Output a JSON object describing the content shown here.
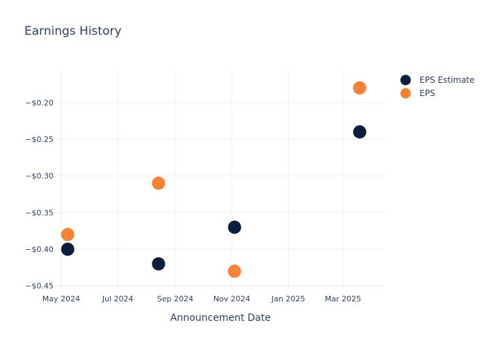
{
  "chart_data": {
    "type": "scatter",
    "title": "Earnings History",
    "xlabel": "Announcement Date",
    "ylabel": "",
    "x_ticks": [
      {
        "date": "2024-05-01",
        "label": "May 2024"
      },
      {
        "date": "2024-07-01",
        "label": "Jul 2024"
      },
      {
        "date": "2024-09-01",
        "label": "Sep 2024"
      },
      {
        "date": "2024-11-01",
        "label": "Nov 2024"
      },
      {
        "date": "2025-01-01",
        "label": "Jan 2025"
      },
      {
        "date": "2025-03-01",
        "label": "Mar 2025"
      }
    ],
    "y_ticks": [
      {
        "value": -0.45,
        "label": "−$0.45"
      },
      {
        "value": -0.4,
        "label": "−$0.40"
      },
      {
        "value": -0.35,
        "label": "−$0.35"
      },
      {
        "value": -0.3,
        "label": "−$0.30"
      },
      {
        "value": -0.25,
        "label": "−$0.25"
      },
      {
        "value": -0.2,
        "label": "−$0.20"
      }
    ],
    "xlim": [
      "2024-04-25",
      "2025-04-15"
    ],
    "ylim": [
      -0.455,
      -0.155
    ],
    "grid": true,
    "legend_position": "top-right",
    "series": [
      {
        "name": "EPS Estimate",
        "color": "#0b1e3e",
        "points": [
          {
            "x": "2024-05-08",
            "y": -0.4
          },
          {
            "x": "2024-08-14",
            "y": -0.42
          },
          {
            "x": "2024-11-04",
            "y": -0.37
          },
          {
            "x": "2025-03-19",
            "y": -0.24
          }
        ]
      },
      {
        "name": "EPS",
        "color": "#f58235",
        "points": [
          {
            "x": "2024-05-08",
            "y": -0.38
          },
          {
            "x": "2024-08-14",
            "y": -0.31
          },
          {
            "x": "2024-11-04",
            "y": -0.43
          },
          {
            "x": "2025-03-19",
            "y": -0.18
          }
        ]
      }
    ]
  }
}
